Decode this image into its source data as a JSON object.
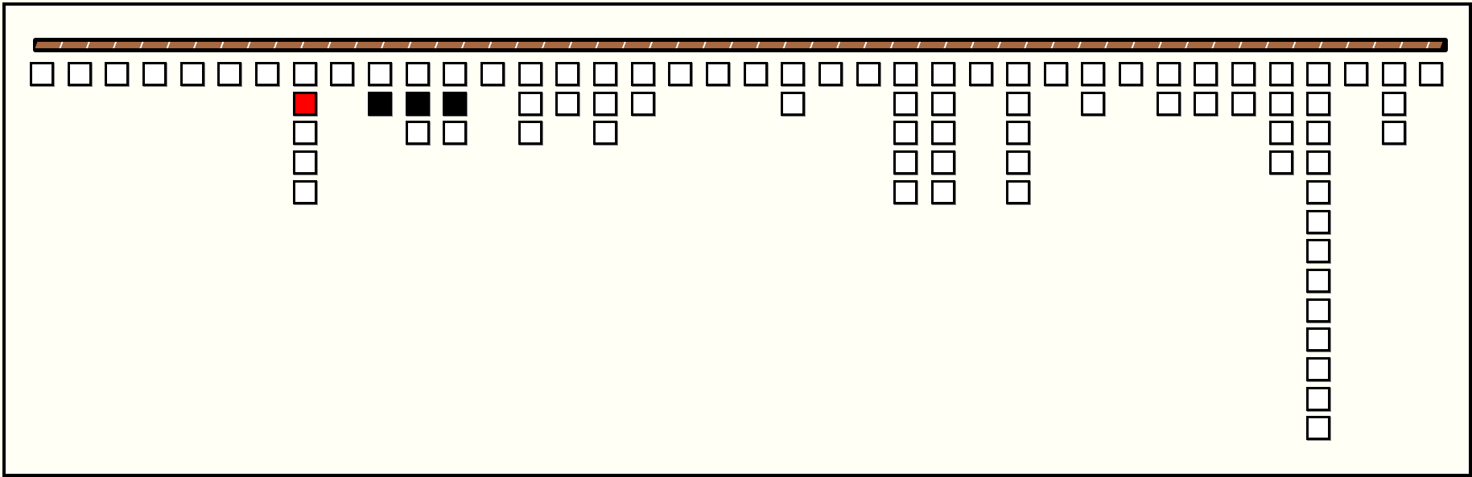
{
  "game": {
    "colors": {
      "background": "#fffff5",
      "rope": "#a86842",
      "empty": "#ffffff",
      "black": "#000000",
      "red": "#ff0000"
    },
    "columns": [
      [
        "white"
      ],
      [
        "white"
      ],
      [
        "white"
      ],
      [
        "white"
      ],
      [
        "white"
      ],
      [
        "white"
      ],
      [
        "white"
      ],
      [
        "white",
        "red",
        "white",
        "white",
        "white"
      ],
      [
        "white"
      ],
      [
        "white",
        "black"
      ],
      [
        "white",
        "black",
        "white"
      ],
      [
        "white",
        "black",
        "white"
      ],
      [
        "white"
      ],
      [
        "white",
        "white",
        "white"
      ],
      [
        "white",
        "white"
      ],
      [
        "white",
        "white",
        "white"
      ],
      [
        "white",
        "white"
      ],
      [
        "white"
      ],
      [
        "white"
      ],
      [
        "white"
      ],
      [
        "white",
        "white"
      ],
      [
        "white"
      ],
      [
        "white"
      ],
      [
        "white",
        "white",
        "white",
        "white",
        "white"
      ],
      [
        "white",
        "white",
        "white",
        "white",
        "white"
      ],
      [
        "white"
      ],
      [
        "white",
        "white",
        "white",
        "white",
        "white"
      ],
      [
        "white"
      ],
      [
        "white",
        "white"
      ],
      [
        "white"
      ],
      [
        "white",
        "white"
      ],
      [
        "white",
        "white"
      ],
      [
        "white",
        "white"
      ],
      [
        "white",
        "white",
        "white",
        "white"
      ],
      [
        "white",
        "white",
        "white",
        "white",
        "white",
        "white",
        "white",
        "white",
        "white",
        "white",
        "white",
        "white",
        "white"
      ],
      [
        "white"
      ],
      [
        "white",
        "white",
        "white"
      ],
      [
        "white"
      ]
    ]
  }
}
